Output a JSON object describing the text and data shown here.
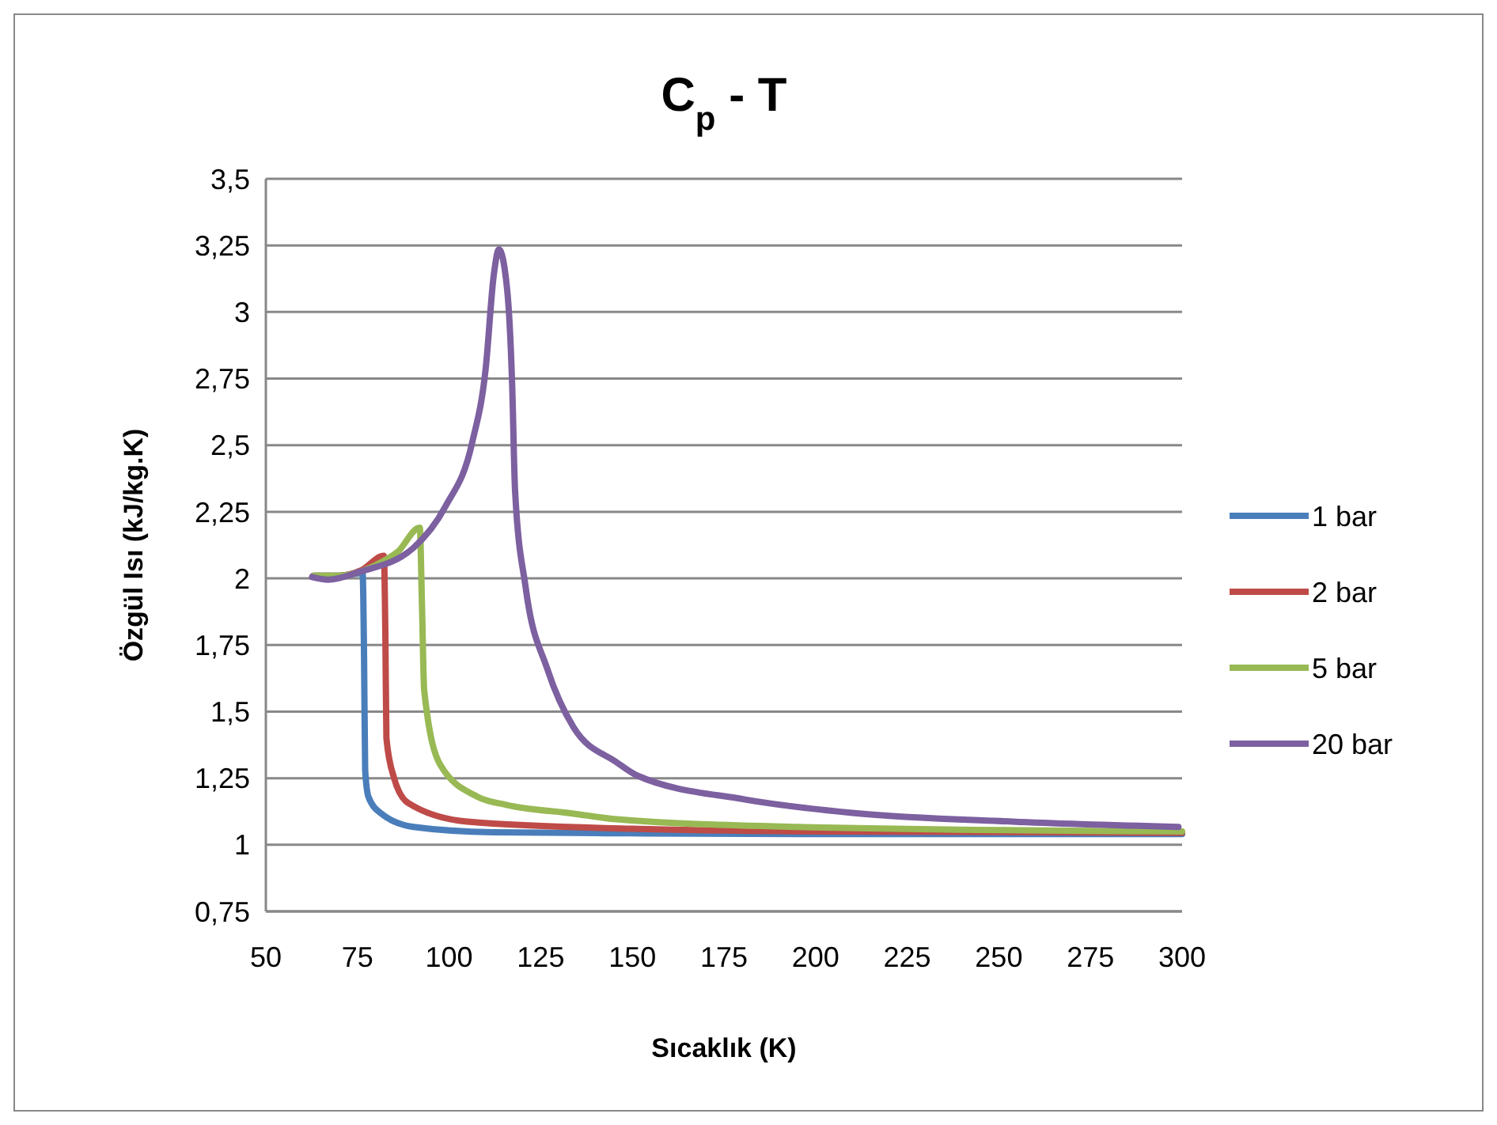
{
  "chart_data": {
    "type": "line",
    "title": "C$_{p}$ - T",
    "xlabel": "Sıcaklık (K)",
    "ylabel": "Özgül Isı  (kJ/kg.K)",
    "xlim": [
      50,
      300
    ],
    "xticks": [
      50,
      75,
      100,
      125,
      150,
      175,
      200,
      225,
      250,
      275,
      300
    ],
    "ylim": [
      0.75,
      3.5
    ],
    "yticks": [
      {
        "value": 0.75,
        "label": "0,75"
      },
      {
        "value": 1,
        "label": "1"
      },
      {
        "value": 1.25,
        "label": "1,25"
      },
      {
        "value": 1.5,
        "label": "1,5"
      },
      {
        "value": 1.75,
        "label": "1,75"
      },
      {
        "value": 2,
        "label": "2"
      },
      {
        "value": 2.25,
        "label": "2,25"
      },
      {
        "value": 2.5,
        "label": "2,5"
      },
      {
        "value": 2.75,
        "label": "2,75"
      },
      {
        "value": 3,
        "label": "3"
      },
      {
        "value": 3.25,
        "label": "3,25"
      },
      {
        "value": 3.5,
        "label": "3,5"
      }
    ],
    "grid": "y",
    "legend": "right",
    "marker": "none",
    "line_style": "solid",
    "series": [
      {
        "name": "1 bar",
        "color": "#4a7ebb",
        "x": [
          63,
          70,
          76.4,
          76.8,
          77.1,
          78,
          81.5,
          90.3,
          112,
          150,
          200,
          300
        ],
        "values": [
          2.01,
          2.01,
          2.02,
          1.7,
          1.28,
          1.18,
          1.117,
          1.067,
          1.047,
          1.043,
          1.04,
          1.04
        ]
      },
      {
        "name": "2 bar",
        "color": "#be4b48",
        "x": [
          63,
          70,
          76,
          82.2,
          82.6,
          82.9,
          85,
          88.8,
          104.9,
          150,
          200,
          300
        ],
        "values": [
          2.01,
          2.01,
          2.03,
          2.085,
          1.8,
          1.4,
          1.25,
          1.157,
          1.087,
          1.06,
          1.05,
          1.045
        ]
      },
      {
        "name": "5 bar",
        "color": "#98b954",
        "x": [
          63,
          70,
          80,
          86,
          92,
          92.6,
          93.2,
          97.6,
          107.8,
          115.6,
          134,
          145,
          195,
          300
        ],
        "values": [
          2.01,
          2.01,
          2.05,
          2.1,
          2.19,
          1.9,
          1.58,
          1.3,
          1.18,
          1.15,
          1.117,
          1.097,
          1.067,
          1.05
        ]
      },
      {
        "name": "20 bar",
        "color": "#7d60a0",
        "x": [
          62.6,
          67,
          75.7,
          90.3,
          99,
          106.3,
          110,
          112.2,
          113.6,
          115.8,
          117.2,
          118,
          120.9,
          126.8,
          134,
          145.7,
          151.3,
          180.8,
          210,
          253.7,
          299
        ],
        "values": [
          2.005,
          1.995,
          2.025,
          2.115,
          2.27,
          2.51,
          2.79,
          3.14,
          3.235,
          3.09,
          2.73,
          2.33,
          1.965,
          1.66,
          1.44,
          1.31,
          1.26,
          1.17,
          1.12,
          1.087,
          1.067
        ]
      }
    ]
  }
}
